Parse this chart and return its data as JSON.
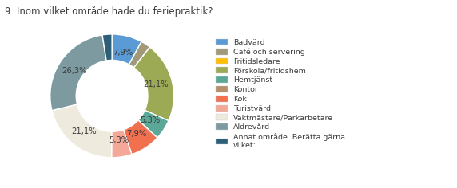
{
  "title": "9. Inom vilket område hade du feriepraktik?",
  "segments": [
    {
      "label": "Badvärd",
      "pct": 7.9,
      "color": "#5B9BD5"
    },
    {
      "label": "Café och servering",
      "pct": 2.6,
      "color": "#A09A7A"
    },
    {
      "label": "Fritidsledare",
      "pct": 0.001,
      "color": "#FFC000"
    },
    {
      "label": "Förskola/fritidshem",
      "pct": 21.1,
      "color": "#9DAA55"
    },
    {
      "label": "Hemtjänst",
      "pct": 5.3,
      "color": "#5BA898"
    },
    {
      "label": "Kontor",
      "pct": 0.001,
      "color": "#B5906A"
    },
    {
      "label": "Kök",
      "pct": 7.9,
      "color": "#F07050"
    },
    {
      "label": "Turistvärd",
      "pct": 5.3,
      "color": "#F4A898"
    },
    {
      "label": "Vaktmästare/Parkarbetare",
      "pct": 21.1,
      "color": "#EEEADE"
    },
    {
      "label": "Äldrevård",
      "pct": 26.3,
      "color": "#7D9AA0"
    },
    {
      "label": "Annat område. Berätta gärna\nvilket:",
      "pct": 2.5,
      "color": "#2E5F78"
    }
  ],
  "title_fontsize": 8.5,
  "label_fontsize": 7.2,
  "legend_fontsize": 6.8,
  "text_color": "#3C3C3C",
  "bg_color": "#FFFFFF"
}
